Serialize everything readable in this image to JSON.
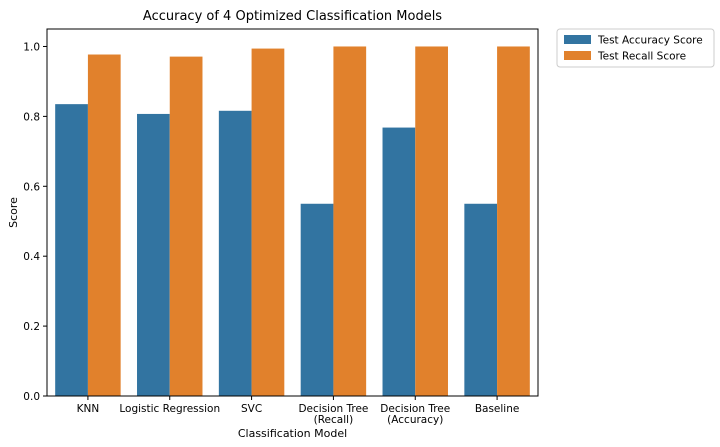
{
  "chart_data": {
    "type": "bar",
    "title": "Accuracy of 4 Optimized Classification Models",
    "xlabel": "Classification Model",
    "ylabel": "Score",
    "ylim": [
      0,
      1.05
    ],
    "yticks": [
      "0.0",
      "0.2",
      "0.4",
      "0.6",
      "0.8",
      "1.0"
    ],
    "categories": [
      [
        "KNN"
      ],
      [
        "Logistic Regression"
      ],
      [
        "SVC"
      ],
      [
        "Decision Tree",
        "(Recall)"
      ],
      [
        "Decision Tree",
        "(Accuracy)"
      ],
      [
        "Baseline"
      ]
    ],
    "series": [
      {
        "name": "Test Accuracy Score",
        "color": "#3274a1",
        "values": [
          0.835,
          0.807,
          0.816,
          0.55,
          0.768,
          0.55
        ]
      },
      {
        "name": "Test Recall Score",
        "color": "#e1812c",
        "values": [
          0.977,
          0.971,
          0.994,
          1.0,
          1.0,
          1.0
        ]
      }
    ],
    "legend_position": "outside-top-right",
    "grid": false
  }
}
